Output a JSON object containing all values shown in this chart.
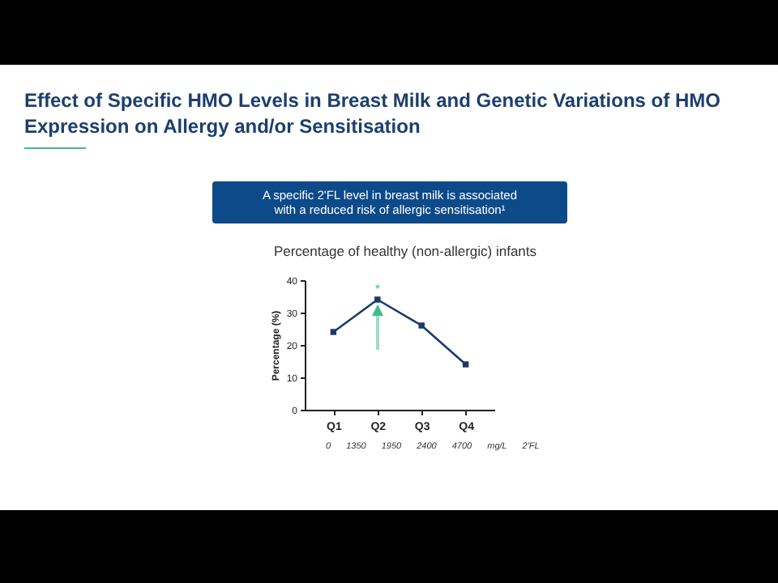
{
  "chart_data": {
    "type": "line",
    "title": "Effect of Specific HMO Levels in Breast Milk and Genetic Variations of HMO Expression on Allergy and/or Sensitisation",
    "subtitle": "Percentage of healthy (non-allergic) infants",
    "ylabel": "Percentage (%)",
    "categories": [
      "Q1",
      "Q2",
      "Q3",
      "Q4"
    ],
    "series": [
      {
        "color": "#1b3a6b",
        "values": [
          24,
          34,
          26,
          14
        ]
      }
    ],
    "ylim": [
      0,
      40
    ],
    "yticks": [
      0,
      10,
      20,
      30,
      40
    ],
    "marker": "square",
    "line_style": "solid",
    "grid": false,
    "annotations": [
      "A specific 2'FL level in breast milk is associated with a reduced risk of allergic sensitisation¹",
      {
        "text": "*",
        "x": "Q2",
        "y": 37
      },
      "0 1350 1950 2400 4700 mg/L 2'FL"
    ]
  }
}
